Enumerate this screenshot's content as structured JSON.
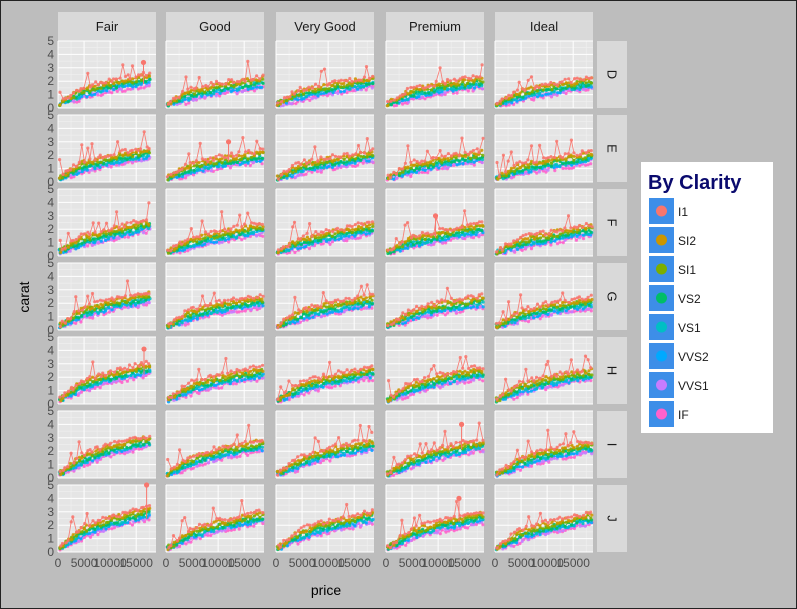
{
  "chart_data": {
    "type": "scatter",
    "subtype": "faceted line + point",
    "xlabel": "price",
    "ylabel": "carat",
    "xlim": [
      0,
      18800
    ],
    "ylim": [
      0,
      5
    ],
    "x_ticks": [
      0,
      5000,
      10000,
      15000
    ],
    "x_tick_labels": [
      "0",
      "5000",
      "10000",
      "15000"
    ],
    "y_ticks": [
      0,
      1,
      2,
      3,
      4,
      5
    ],
    "y_tick_labels": [
      "0",
      "1",
      "2",
      "3",
      "4",
      "5"
    ],
    "grid": true,
    "facet_cols": [
      "Fair",
      "Good",
      "Very Good",
      "Premium",
      "Ideal"
    ],
    "facet_rows": [
      "D",
      "E",
      "F",
      "G",
      "H",
      "I",
      "J"
    ],
    "legend": {
      "title": "By Clarity",
      "position": "right",
      "entries": [
        {
          "name": "I1",
          "color": "#f8766d"
        },
        {
          "name": "SI2",
          "color": "#cd9600"
        },
        {
          "name": "SI1",
          "color": "#7cae00"
        },
        {
          "name": "VS2",
          "color": "#00be67"
        },
        {
          "name": "VS1",
          "color": "#00bfc4"
        },
        {
          "name": "VVS2",
          "color": "#00a9ff"
        },
        {
          "name": "VVS1",
          "color": "#c77cff"
        },
        {
          "name": "IF",
          "color": "#ff61cc"
        }
      ]
    },
    "trend": {
      "description": "carat rises with price in every panel; approx carat values at price 0, 5000, 10000, 15000, 18000 (typical SI1 trace)",
      "x": [
        400,
        5000,
        10000,
        15000,
        18000
      ],
      "y_by_row": {
        "D": [
          0.3,
          1.0,
          1.4,
          1.7,
          1.9
        ],
        "E": [
          0.3,
          1.0,
          1.4,
          1.7,
          1.9
        ],
        "F": [
          0.3,
          1.0,
          1.4,
          1.8,
          2.0
        ],
        "G": [
          0.3,
          1.1,
          1.6,
          1.9,
          2.1
        ],
        "H": [
          0.3,
          1.2,
          1.7,
          2.1,
          2.3
        ],
        "I": [
          0.3,
          1.2,
          1.8,
          2.2,
          2.4
        ],
        "J": [
          0.3,
          1.3,
          1.9,
          2.3,
          2.6
        ]
      }
    },
    "highlights": [
      {
        "row": "D",
        "col": "Fair",
        "x": 16400,
        "y": 3.4,
        "series": "I1"
      },
      {
        "row": "J",
        "col": "Fair",
        "x": 17000,
        "y": 5.0,
        "series": "I1"
      },
      {
        "row": "H",
        "col": "Fair",
        "x": 16500,
        "y": 4.1,
        "series": "I1"
      },
      {
        "row": "E",
        "col": "Good",
        "x": 12000,
        "y": 3.0,
        "series": "I1"
      },
      {
        "row": "F",
        "col": "Premium",
        "x": 9500,
        "y": 3.0,
        "series": "I1"
      },
      {
        "row": "I",
        "col": "Premium",
        "x": 14500,
        "y": 4.0,
        "series": "I1"
      },
      {
        "row": "J",
        "col": "Premium",
        "x": 14000,
        "y": 4.0,
        "series": "I1"
      }
    ]
  }
}
